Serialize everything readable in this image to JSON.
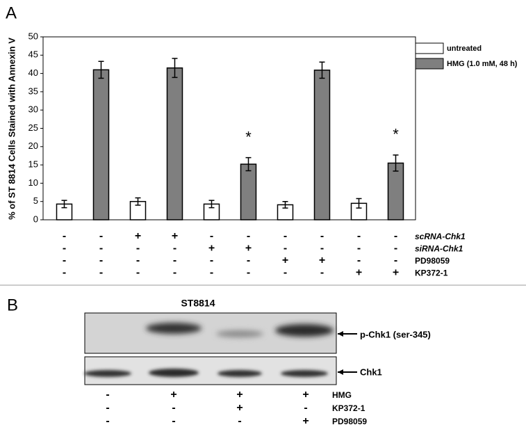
{
  "chart_data": {
    "type": "bar",
    "panel_label": "A",
    "y_label": "% of ST 8814 Cells Stained with Annexin V",
    "categories": [
      null,
      null,
      null,
      null,
      null,
      null,
      null,
      null,
      null,
      null
    ],
    "series": [
      {
        "name": "untreated",
        "color": "#ffffff",
        "values": [
          4.3,
          null,
          5.0,
          null,
          4.3,
          null,
          4.1,
          null,
          4.5,
          null
        ],
        "errors": [
          1.0,
          null,
          1.0,
          null,
          1.0,
          null,
          0.9,
          null,
          1.3,
          null
        ]
      },
      {
        "name": "HMG (1.0 mM, 48 h)",
        "color": "#7f7f7f",
        "values": [
          null,
          41.0,
          null,
          41.5,
          null,
          15.2,
          null,
          40.9,
          null,
          15.5
        ],
        "errors": [
          null,
          2.3,
          null,
          2.6,
          null,
          1.8,
          null,
          2.2,
          null,
          2.2
        ]
      }
    ],
    "ylim": [
      0,
      50
    ],
    "yticks": [
      0,
      5,
      10,
      15,
      20,
      25,
      30,
      35,
      40,
      45,
      50
    ],
    "annotations": [
      {
        "index": 5,
        "text": "*"
      },
      {
        "index": 9,
        "text": "*"
      }
    ],
    "treatment_rows": [
      {
        "name": "scRNA-Chk1",
        "signs": [
          "-",
          "-",
          "+",
          "+",
          "-",
          "-",
          "-",
          "-",
          "-",
          "-"
        ]
      },
      {
        "name": "siRNA-Chk1",
        "signs": [
          "-",
          "-",
          "-",
          "-",
          "+",
          "+",
          "-",
          "-",
          "-",
          "-"
        ]
      },
      {
        "name": "PD98059",
        "signs": [
          "-",
          "-",
          "-",
          "-",
          "-",
          "-",
          "+",
          "+",
          "-",
          "-"
        ]
      },
      {
        "name": "KP372-1",
        "signs": [
          "-",
          "-",
          "-",
          "-",
          "-",
          "-",
          "-",
          "-",
          "+",
          "+"
        ]
      }
    ]
  },
  "blot": {
    "panel_label": "B",
    "title": "ST8814",
    "bands": [
      {
        "label": "p-Chk1 (ser-345)"
      },
      {
        "label": "Chk1"
      }
    ],
    "treatment_rows": [
      {
        "name": "HMG",
        "signs": [
          "-",
          "+",
          "+",
          "+"
        ]
      },
      {
        "name": "KP372-1",
        "signs": [
          "-",
          "-",
          "+",
          "-"
        ]
      },
      {
        "name": "PD98059",
        "signs": [
          "-",
          "-",
          "-",
          "+"
        ]
      }
    ]
  }
}
